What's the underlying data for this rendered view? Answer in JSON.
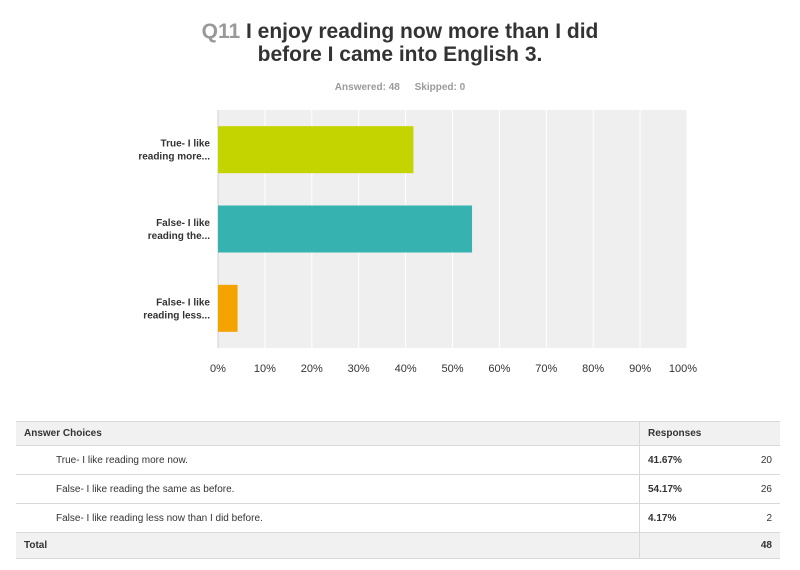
{
  "question": {
    "number": "Q11",
    "title_line1": "I enjoy reading now more than I did",
    "title_line2": "before I came into English 3."
  },
  "stats": {
    "answered": "Answered: 48",
    "skipped": "Skipped: 0"
  },
  "chart_data": {
    "type": "bar",
    "orientation": "horizontal",
    "categories": [
      [
        "True- I like",
        "reading more..."
      ],
      [
        "False- I like",
        "reading the..."
      ],
      [
        "False- I like",
        "reading less..."
      ]
    ],
    "values": [
      41.67,
      54.17,
      4.17
    ],
    "colors": [
      "#c4d400",
      "#36b3b0",
      "#f5a300"
    ],
    "xlim": [
      0,
      100
    ],
    "xticks": [
      "0%",
      "10%",
      "20%",
      "30%",
      "40%",
      "50%",
      "60%",
      "70%",
      "80%",
      "90%",
      "100%"
    ],
    "grid": true,
    "plot_background": "#efefef"
  },
  "table": {
    "headers": [
      "Answer Choices",
      "Responses",
      ""
    ],
    "rows": [
      {
        "choice": "True- I like reading more now.",
        "percent": "41.67%",
        "count": "20"
      },
      {
        "choice": "False- I like reading the same as before.",
        "percent": "54.17%",
        "count": "26"
      },
      {
        "choice": "False- I like reading less now than I did before.",
        "percent": "4.17%",
        "count": "2"
      }
    ],
    "total_label": "Total",
    "total_count": "48"
  }
}
